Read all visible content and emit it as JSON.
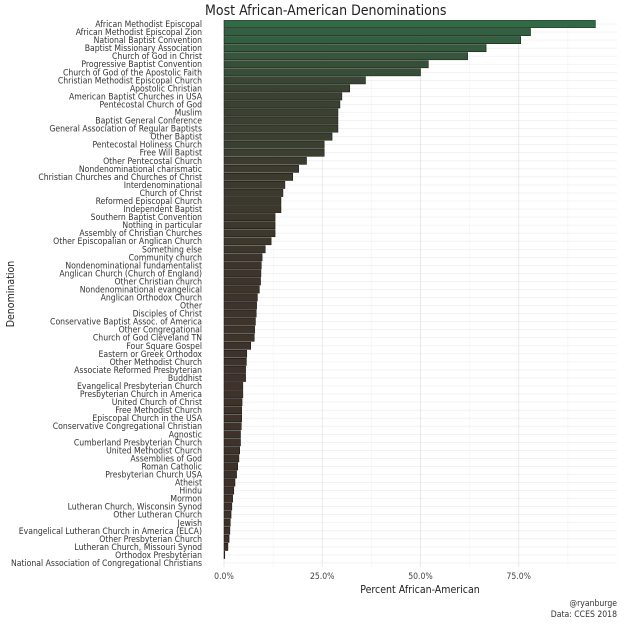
{
  "chart_data": {
    "type": "bar",
    "orientation": "horizontal",
    "title": "Most African-American Denominations",
    "xlabel": "Percent African-American",
    "ylabel": "Denomination",
    "xlim": [
      0,
      1
    ],
    "xticks": [
      0,
      0.25,
      0.5,
      0.75
    ],
    "xtick_labels": [
      "0.0%",
      "25.0%",
      "50.0%",
      "75.0%"
    ],
    "grid": true,
    "legend": "none",
    "fill_gradient": {
      "low": "#3f2f28",
      "high": "#2f6b45"
    },
    "caption": [
      "@ryanburge",
      "Data: CCES 2018"
    ],
    "categories": [
      "African Methodist Episcopal",
      "African Methodist Episcopal Zion",
      "National Baptist Convention",
      "Baptist Missionary Association",
      "Church of God in Christ",
      "Progressive Baptist Convention",
      "Church of God of the Apostolic Faith",
      "Christian Methodist Episcopal Church",
      "Apostolic Christian",
      "American Baptist Churches in USA",
      "Pentecostal Church of God",
      "Muslim",
      "Baptist General Conference",
      "General Association of Regular Baptists",
      "Other Baptist",
      "Pentecostal Holiness Church",
      "Free Will Baptist",
      "Other Pentecostal Church",
      "Nondenominational charismatic",
      "Christian Churches and Churches of Christ",
      "Interdenominational",
      "Church of Christ",
      "Reformed Episcopal Church",
      "Independent Baptist",
      "Southern Baptist Convention",
      "Nothing in particular",
      "Assembly of Christian Churches",
      "Other Episcopalian or Anglican Church",
      "Something else",
      "Community church",
      "Nondenominational fundamentalist",
      "Anglican Church (Church of England)",
      "Other Christian church",
      "Nondenominational evangelical",
      "Anglican Orthodox Church",
      "Other",
      "Disciples of Christ",
      "Conservative Baptist Assoc. of America",
      "Other Congregational",
      "Church of God Cleveland TN",
      "Four Square Gospel",
      "Eastern or Greek Orthodox",
      "Other Methodist Church",
      "Associate Reformed Presbyterian",
      "Buddhist",
      "Evangelical Presbyterian Church",
      "Presbyterian Church in America",
      "United Church of Christ",
      "Free Methodist Church",
      "Episcopal Church in the USA",
      "Conservative Congregational Christian",
      "Agnostic",
      "Cumberland Presbyterian Church",
      "United Methodist Church",
      "Assemblies of God",
      "Roman Catholic",
      "Presbyterian Church USA",
      "Atheist",
      "Hindu",
      "Mormon",
      "Lutheran Church, Wisconsin Synod",
      "Other Lutheran Church",
      "Jewish",
      "Evangelical Lutheran Church in America (ELCA)",
      "Other Presbyterian Church",
      "Lutheran Church, Missouri Synod",
      "Orthodox Presbyterian",
      "National Association of Congregational Christians"
    ],
    "values": [
      0.945,
      0.78,
      0.755,
      0.667,
      0.62,
      0.52,
      0.5,
      0.36,
      0.32,
      0.3,
      0.295,
      0.29,
      0.29,
      0.29,
      0.275,
      0.255,
      0.255,
      0.21,
      0.19,
      0.175,
      0.155,
      0.15,
      0.145,
      0.145,
      0.13,
      0.13,
      0.13,
      0.12,
      0.105,
      0.097,
      0.095,
      0.094,
      0.093,
      0.09,
      0.085,
      0.083,
      0.082,
      0.08,
      0.078,
      0.077,
      0.068,
      0.058,
      0.057,
      0.055,
      0.055,
      0.048,
      0.048,
      0.046,
      0.045,
      0.045,
      0.044,
      0.042,
      0.042,
      0.04,
      0.038,
      0.035,
      0.032,
      0.028,
      0.025,
      0.022,
      0.02,
      0.018,
      0.016,
      0.015,
      0.013,
      0.01,
      0.002,
      0.0
    ]
  }
}
